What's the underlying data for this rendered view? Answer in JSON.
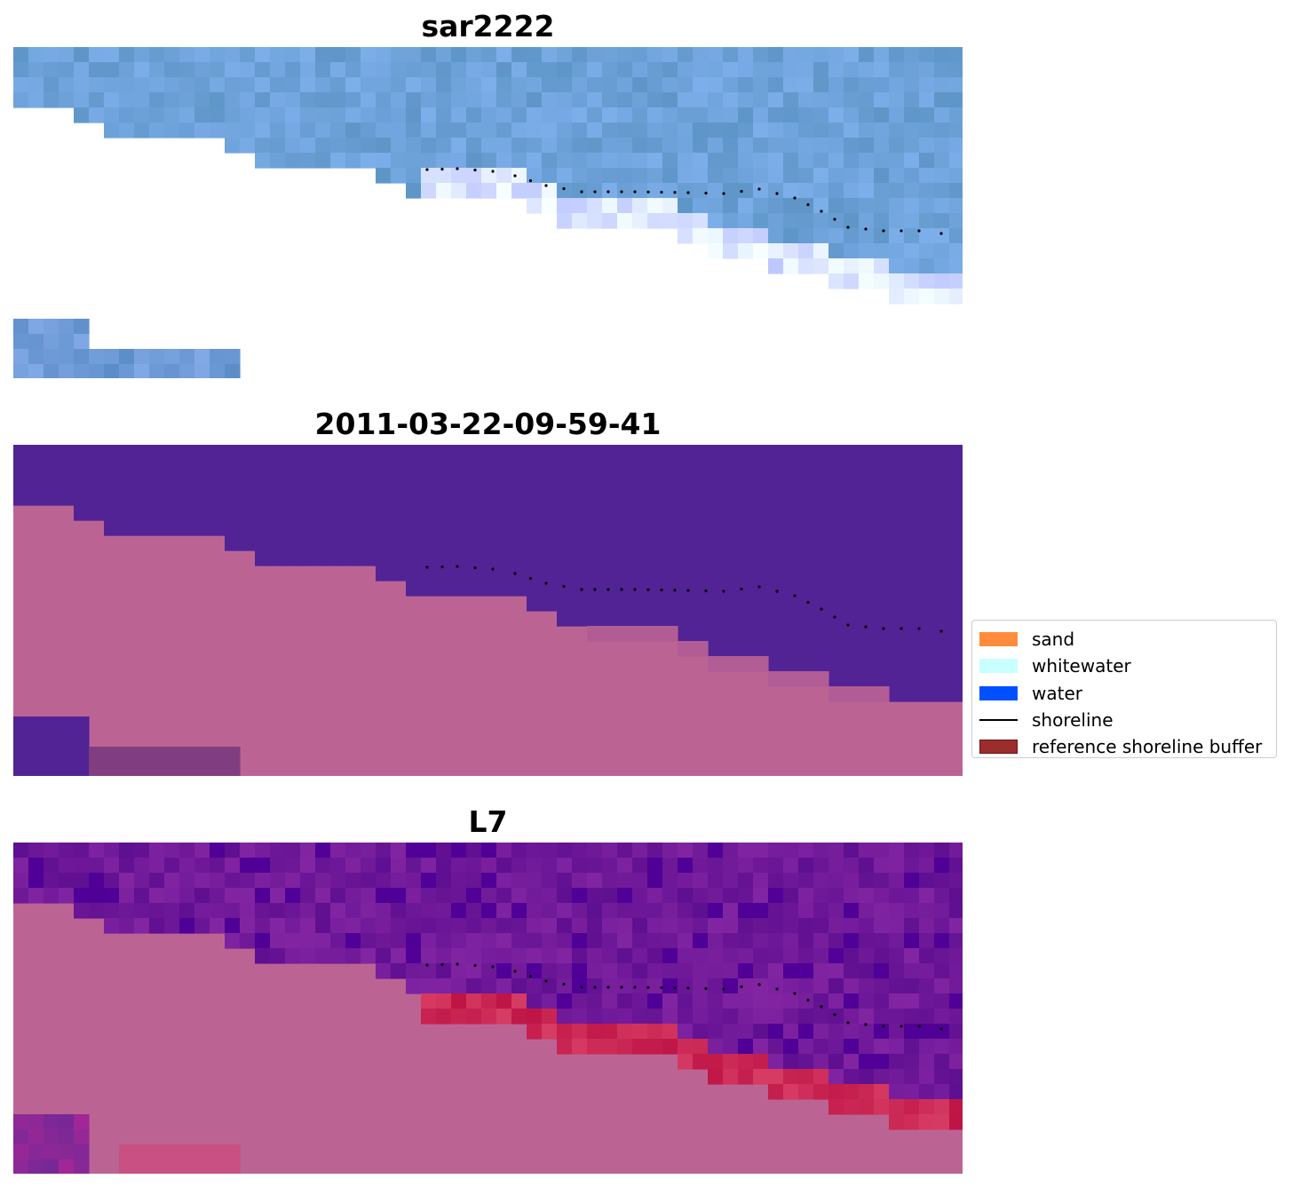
{
  "panels": [
    {
      "title": "sar2222",
      "style": "rgb"
    },
    {
      "title": "2011-03-22-09-59-41",
      "style": "class"
    },
    {
      "title": "L7",
      "style": "index"
    }
  ],
  "legend": {
    "items": [
      {
        "label": "sand",
        "color": "#ff8c3c",
        "kind": "patch"
      },
      {
        "label": "whitewater",
        "color": "#c8ffff",
        "kind": "patch"
      },
      {
        "label": "water",
        "color": "#0050ff",
        "kind": "patch"
      },
      {
        "label": "shoreline",
        "color": "#000000",
        "kind": "line"
      },
      {
        "label": "reference shoreline buffer",
        "color": "#9b2d2d",
        "kind": "patch"
      }
    ]
  },
  "colors": {
    "water_class": "#522395",
    "land": "#bb6494",
    "sar_blue": "#6a9ee0",
    "index_purple": "#6a1a9a",
    "index_red": "#c8143c"
  }
}
